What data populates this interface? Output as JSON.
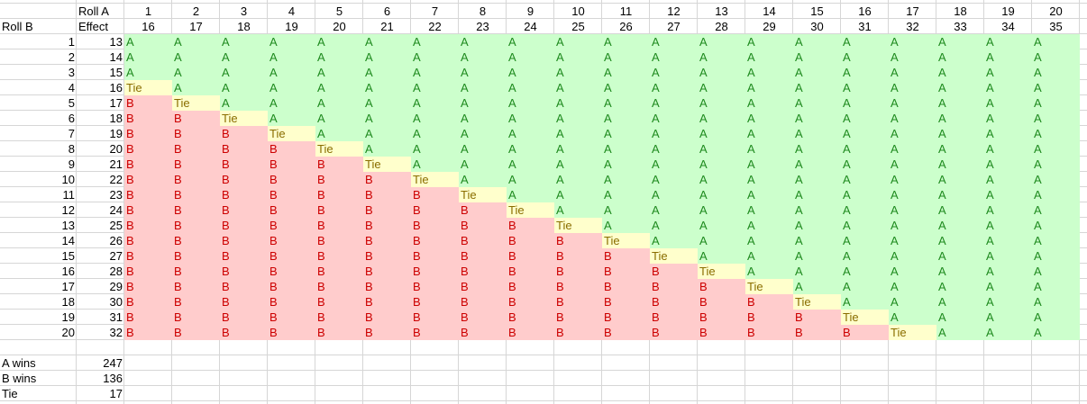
{
  "header": {
    "roll_a_label": "Roll A",
    "roll_b_label": "Roll B",
    "effect_label": "Effect"
  },
  "columns": [
    {
      "roll": 1,
      "effect": 16
    },
    {
      "roll": 2,
      "effect": 17
    },
    {
      "roll": 3,
      "effect": 18
    },
    {
      "roll": 4,
      "effect": 19
    },
    {
      "roll": 5,
      "effect": 20
    },
    {
      "roll": 6,
      "effect": 21
    },
    {
      "roll": 7,
      "effect": 22
    },
    {
      "roll": 8,
      "effect": 23
    },
    {
      "roll": 9,
      "effect": 24
    },
    {
      "roll": 10,
      "effect": 25
    },
    {
      "roll": 11,
      "effect": 26
    },
    {
      "roll": 12,
      "effect": 27
    },
    {
      "roll": 13,
      "effect": 28
    },
    {
      "roll": 14,
      "effect": 29
    },
    {
      "roll": 15,
      "effect": 30
    },
    {
      "roll": 16,
      "effect": 31
    },
    {
      "roll": 17,
      "effect": 32
    },
    {
      "roll": 18,
      "effect": 33
    },
    {
      "roll": 19,
      "effect": 34
    },
    {
      "roll": 20,
      "effect": 35
    }
  ],
  "rows": [
    {
      "roll": 1,
      "effect": 13,
      "cells": [
        "A",
        "A",
        "A",
        "A",
        "A",
        "A",
        "A",
        "A",
        "A",
        "A",
        "A",
        "A",
        "A",
        "A",
        "A",
        "A",
        "A",
        "A",
        "A",
        "A"
      ]
    },
    {
      "roll": 2,
      "effect": 14,
      "cells": [
        "A",
        "A",
        "A",
        "A",
        "A",
        "A",
        "A",
        "A",
        "A",
        "A",
        "A",
        "A",
        "A",
        "A",
        "A",
        "A",
        "A",
        "A",
        "A",
        "A"
      ]
    },
    {
      "roll": 3,
      "effect": 15,
      "cells": [
        "A",
        "A",
        "A",
        "A",
        "A",
        "A",
        "A",
        "A",
        "A",
        "A",
        "A",
        "A",
        "A",
        "A",
        "A",
        "A",
        "A",
        "A",
        "A",
        "A"
      ]
    },
    {
      "roll": 4,
      "effect": 16,
      "cells": [
        "Tie",
        "A",
        "A",
        "A",
        "A",
        "A",
        "A",
        "A",
        "A",
        "A",
        "A",
        "A",
        "A",
        "A",
        "A",
        "A",
        "A",
        "A",
        "A",
        "A"
      ]
    },
    {
      "roll": 5,
      "effect": 17,
      "cells": [
        "B",
        "Tie",
        "A",
        "A",
        "A",
        "A",
        "A",
        "A",
        "A",
        "A",
        "A",
        "A",
        "A",
        "A",
        "A",
        "A",
        "A",
        "A",
        "A",
        "A"
      ]
    },
    {
      "roll": 6,
      "effect": 18,
      "cells": [
        "B",
        "B",
        "Tie",
        "A",
        "A",
        "A",
        "A",
        "A",
        "A",
        "A",
        "A",
        "A",
        "A",
        "A",
        "A",
        "A",
        "A",
        "A",
        "A",
        "A"
      ]
    },
    {
      "roll": 7,
      "effect": 19,
      "cells": [
        "B",
        "B",
        "B",
        "Tie",
        "A",
        "A",
        "A",
        "A",
        "A",
        "A",
        "A",
        "A",
        "A",
        "A",
        "A",
        "A",
        "A",
        "A",
        "A",
        "A"
      ]
    },
    {
      "roll": 8,
      "effect": 20,
      "cells": [
        "B",
        "B",
        "B",
        "B",
        "Tie",
        "A",
        "A",
        "A",
        "A",
        "A",
        "A",
        "A",
        "A",
        "A",
        "A",
        "A",
        "A",
        "A",
        "A",
        "A"
      ]
    },
    {
      "roll": 9,
      "effect": 21,
      "cells": [
        "B",
        "B",
        "B",
        "B",
        "B",
        "Tie",
        "A",
        "A",
        "A",
        "A",
        "A",
        "A",
        "A",
        "A",
        "A",
        "A",
        "A",
        "A",
        "A",
        "A"
      ]
    },
    {
      "roll": 10,
      "effect": 22,
      "cells": [
        "B",
        "B",
        "B",
        "B",
        "B",
        "B",
        "Tie",
        "A",
        "A",
        "A",
        "A",
        "A",
        "A",
        "A",
        "A",
        "A",
        "A",
        "A",
        "A",
        "A"
      ]
    },
    {
      "roll": 11,
      "effect": 23,
      "cells": [
        "B",
        "B",
        "B",
        "B",
        "B",
        "B",
        "B",
        "Tie",
        "A",
        "A",
        "A",
        "A",
        "A",
        "A",
        "A",
        "A",
        "A",
        "A",
        "A",
        "A"
      ]
    },
    {
      "roll": 12,
      "effect": 24,
      "cells": [
        "B",
        "B",
        "B",
        "B",
        "B",
        "B",
        "B",
        "B",
        "Tie",
        "A",
        "A",
        "A",
        "A",
        "A",
        "A",
        "A",
        "A",
        "A",
        "A",
        "A"
      ]
    },
    {
      "roll": 13,
      "effect": 25,
      "cells": [
        "B",
        "B",
        "B",
        "B",
        "B",
        "B",
        "B",
        "B",
        "B",
        "Tie",
        "A",
        "A",
        "A",
        "A",
        "A",
        "A",
        "A",
        "A",
        "A",
        "A"
      ]
    },
    {
      "roll": 14,
      "effect": 26,
      "cells": [
        "B",
        "B",
        "B",
        "B",
        "B",
        "B",
        "B",
        "B",
        "B",
        "B",
        "Tie",
        "A",
        "A",
        "A",
        "A",
        "A",
        "A",
        "A",
        "A",
        "A"
      ]
    },
    {
      "roll": 15,
      "effect": 27,
      "cells": [
        "B",
        "B",
        "B",
        "B",
        "B",
        "B",
        "B",
        "B",
        "B",
        "B",
        "B",
        "Tie",
        "A",
        "A",
        "A",
        "A",
        "A",
        "A",
        "A",
        "A"
      ]
    },
    {
      "roll": 16,
      "effect": 28,
      "cells": [
        "B",
        "B",
        "B",
        "B",
        "B",
        "B",
        "B",
        "B",
        "B",
        "B",
        "B",
        "B",
        "Tie",
        "A",
        "A",
        "A",
        "A",
        "A",
        "A",
        "A"
      ]
    },
    {
      "roll": 17,
      "effect": 29,
      "cells": [
        "B",
        "B",
        "B",
        "B",
        "B",
        "B",
        "B",
        "B",
        "B",
        "B",
        "B",
        "B",
        "B",
        "Tie",
        "A",
        "A",
        "A",
        "A",
        "A",
        "A"
      ]
    },
    {
      "roll": 18,
      "effect": 30,
      "cells": [
        "B",
        "B",
        "B",
        "B",
        "B",
        "B",
        "B",
        "B",
        "B",
        "B",
        "B",
        "B",
        "B",
        "B",
        "Tie",
        "A",
        "A",
        "A",
        "A",
        "A"
      ]
    },
    {
      "roll": 19,
      "effect": 31,
      "cells": [
        "B",
        "B",
        "B",
        "B",
        "B",
        "B",
        "B",
        "B",
        "B",
        "B",
        "B",
        "B",
        "B",
        "B",
        "B",
        "Tie",
        "A",
        "A",
        "A",
        "A"
      ]
    },
    {
      "roll": 20,
      "effect": 32,
      "cells": [
        "B",
        "B",
        "B",
        "B",
        "B",
        "B",
        "B",
        "B",
        "B",
        "B",
        "B",
        "B",
        "B",
        "B",
        "B",
        "B",
        "Tie",
        "A",
        "A",
        "A"
      ]
    }
  ],
  "summary": [
    {
      "label": "A wins",
      "value": 247
    },
    {
      "label": "B wins",
      "value": 136
    },
    {
      "label": "Tie",
      "value": 17
    }
  ],
  "colors": {
    "A": {
      "fill": "#ccffcc",
      "text": "#1e8a1e"
    },
    "B": {
      "fill": "#ffcccc",
      "text": "#cc0000"
    },
    "Tie": {
      "fill": "#ffffcc",
      "text": "#8a6d00"
    }
  }
}
